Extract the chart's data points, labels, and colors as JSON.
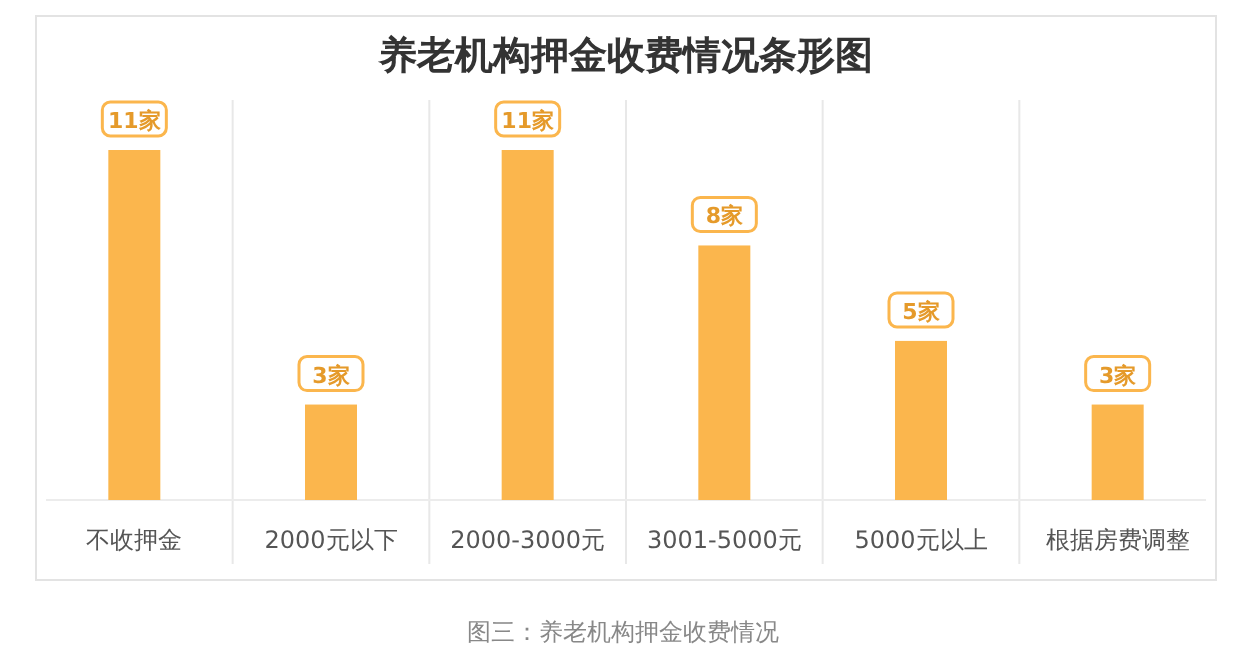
{
  "chart_data": {
    "type": "bar",
    "title": "养老机构押金收费情况条形图",
    "categories": [
      "不收押金",
      "2000元以下",
      "2000-3000元",
      "3001-5000元",
      "5000元以上",
      "根据房费调整"
    ],
    "values": [
      11,
      3,
      11,
      8,
      5,
      3
    ],
    "value_labels": [
      "11家",
      "3家",
      "11家",
      "8家",
      "5家",
      "3家"
    ],
    "color": "#fbb64d",
    "annotations": [
      "图三：养老机构押金收费情况"
    ]
  }
}
